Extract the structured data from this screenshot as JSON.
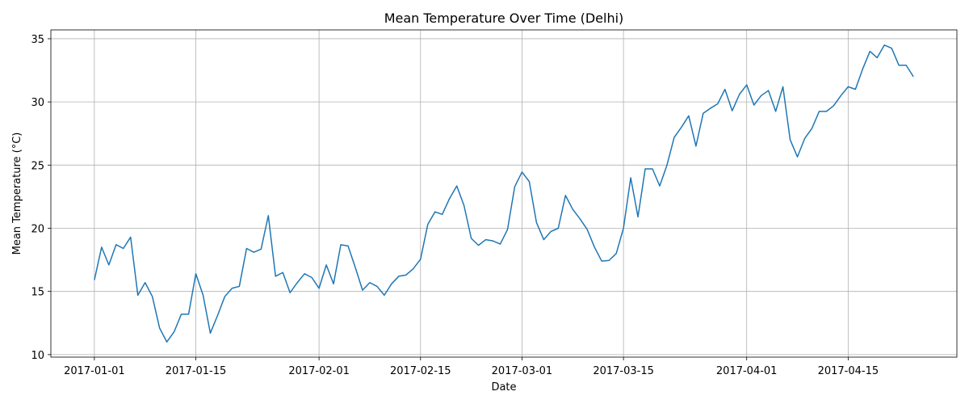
{
  "chart_data": {
    "type": "line",
    "title": "Mean Temperature Over Time (Delhi)",
    "xlabel": "Date",
    "ylabel": "Mean Temperature (°C)",
    "x_start": "2017-01-01",
    "x_range": [
      "2016-12-26",
      "2017-04-30"
    ],
    "xlim": [
      "2016-12-26",
      "2017-04-30"
    ],
    "ylim": [
      9.8,
      35.7
    ],
    "grid": true,
    "line_color": "#1f77b4",
    "x_ticks": [
      {
        "date": "2017-01-01",
        "label": "2017-01-01"
      },
      {
        "date": "2017-01-15",
        "label": "2017-01-15"
      },
      {
        "date": "2017-02-01",
        "label": "2017-02-01"
      },
      {
        "date": "2017-02-15",
        "label": "2017-02-15"
      },
      {
        "date": "2017-03-01",
        "label": "2017-03-01"
      },
      {
        "date": "2017-03-15",
        "label": "2017-03-15"
      },
      {
        "date": "2017-04-01",
        "label": "2017-04-01"
      },
      {
        "date": "2017-04-15",
        "label": "2017-04-15"
      }
    ],
    "y_ticks": [
      {
        "value": 10,
        "label": "10"
      },
      {
        "value": 15,
        "label": "15"
      },
      {
        "value": 20,
        "label": "20"
      },
      {
        "value": 25,
        "label": "25"
      },
      {
        "value": 30,
        "label": "30"
      },
      {
        "value": 35,
        "label": "35"
      }
    ],
    "series": [
      {
        "x": [
          "2017-01-01",
          "2017-01-02",
          "2017-01-03",
          "2017-01-04",
          "2017-01-05",
          "2017-01-06",
          "2017-01-07",
          "2017-01-08",
          "2017-01-09",
          "2017-01-10",
          "2017-01-11",
          "2017-01-12",
          "2017-01-13",
          "2017-01-14",
          "2017-01-15",
          "2017-01-16",
          "2017-01-17",
          "2017-01-18",
          "2017-01-19",
          "2017-01-20",
          "2017-01-21",
          "2017-01-22",
          "2017-01-23",
          "2017-01-24",
          "2017-01-25",
          "2017-01-26",
          "2017-01-27",
          "2017-01-28",
          "2017-01-29",
          "2017-01-30",
          "2017-01-31",
          "2017-02-01",
          "2017-02-02",
          "2017-02-03",
          "2017-02-04",
          "2017-02-05",
          "2017-02-06",
          "2017-02-07",
          "2017-02-08",
          "2017-02-09",
          "2017-02-10",
          "2017-02-11",
          "2017-02-12",
          "2017-02-13",
          "2017-02-14",
          "2017-02-15",
          "2017-02-16",
          "2017-02-17",
          "2017-02-18",
          "2017-02-19",
          "2017-02-20",
          "2017-02-21",
          "2017-02-22",
          "2017-02-23",
          "2017-02-24",
          "2017-02-25",
          "2017-02-26",
          "2017-02-27",
          "2017-02-28",
          "2017-03-01",
          "2017-03-02",
          "2017-03-03",
          "2017-03-04",
          "2017-03-05",
          "2017-03-06",
          "2017-03-07",
          "2017-03-08",
          "2017-03-09",
          "2017-03-10",
          "2017-03-11",
          "2017-03-12",
          "2017-03-13",
          "2017-03-14",
          "2017-03-15",
          "2017-03-16",
          "2017-03-17",
          "2017-03-18",
          "2017-03-19",
          "2017-03-20",
          "2017-03-21",
          "2017-03-22",
          "2017-03-23",
          "2017-03-24",
          "2017-03-25",
          "2017-03-26",
          "2017-03-27",
          "2017-03-28",
          "2017-03-29",
          "2017-03-30",
          "2017-03-31",
          "2017-04-01",
          "2017-04-02",
          "2017-04-03",
          "2017-04-04",
          "2017-04-05",
          "2017-04-06",
          "2017-04-07",
          "2017-04-08",
          "2017-04-09",
          "2017-04-10",
          "2017-04-11",
          "2017-04-12",
          "2017-04-13",
          "2017-04-14",
          "2017-04-15",
          "2017-04-16",
          "2017-04-17",
          "2017-04-18",
          "2017-04-19",
          "2017-04-20",
          "2017-04-21",
          "2017-04-22",
          "2017-04-23",
          "2017-04-24"
        ],
        "values": [
          15.9,
          18.5,
          17.1,
          18.7,
          18.4,
          19.3,
          14.7,
          15.7,
          14.6,
          12.1,
          11.0,
          11.8,
          13.2,
          13.2,
          16.4,
          14.7,
          11.7,
          13.1,
          14.6,
          15.25,
          15.4,
          18.4,
          18.1,
          18.35,
          21.0,
          16.2,
          16.5,
          14.9,
          15.7,
          16.4,
          16.1,
          15.25,
          17.1,
          15.6,
          18.7,
          18.6,
          16.9,
          15.1,
          15.7,
          15.4,
          14.7,
          15.6,
          16.2,
          16.3,
          16.8,
          17.55,
          20.3,
          21.3,
          21.1,
          22.35,
          23.35,
          21.8,
          19.2,
          18.65,
          19.1,
          19.0,
          18.75,
          19.9,
          23.3,
          24.45,
          23.7,
          20.45,
          19.1,
          19.75,
          20.0,
          22.6,
          21.5,
          20.75,
          19.9,
          18.5,
          17.4,
          17.45,
          18.0,
          20.0,
          24.0,
          20.9,
          24.7,
          24.7,
          23.35,
          25.0,
          27.2,
          28.0,
          28.9,
          26.5,
          29.1,
          29.5,
          29.85,
          31.0,
          29.3,
          30.6,
          31.35,
          29.75,
          30.5,
          30.9,
          29.25,
          31.2,
          27.0,
          25.65,
          27.1,
          27.9,
          29.25,
          29.25,
          29.7,
          30.5,
          31.2,
          31.0,
          32.6,
          34.0,
          33.5,
          34.5,
          34.25,
          32.9,
          32.9,
          32.0
        ]
      }
    ]
  }
}
